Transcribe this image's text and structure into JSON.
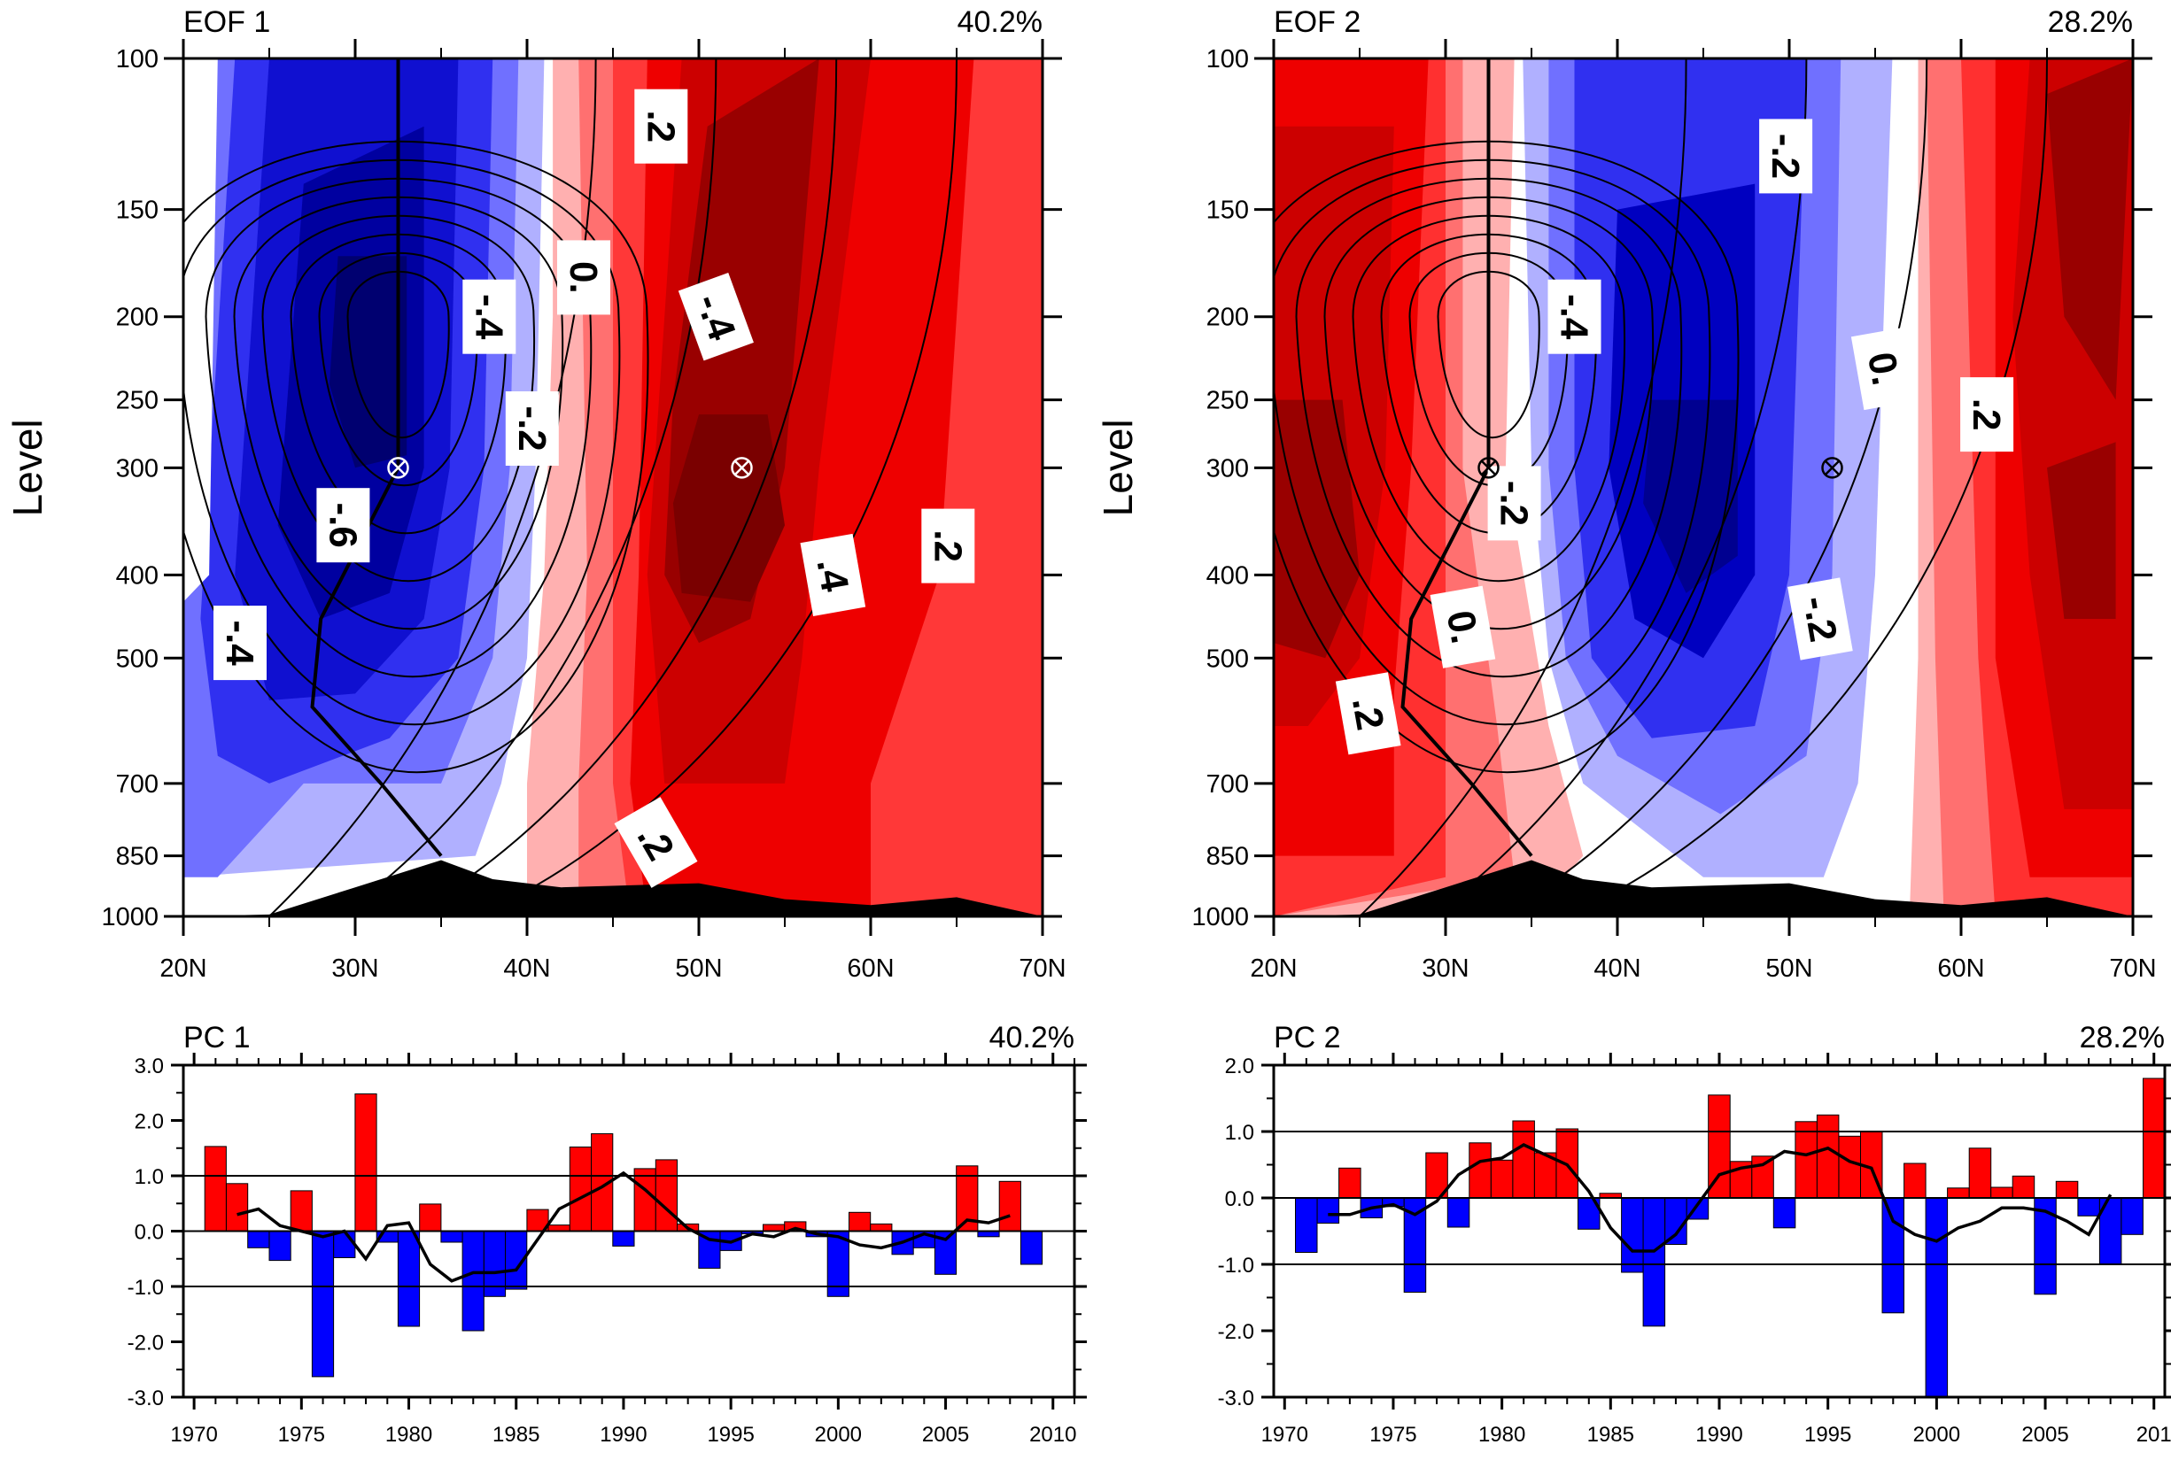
{
  "chart_data": [
    {
      "id": "eof1",
      "type": "contour",
      "title_left": "EOF 1",
      "title_right": "40.2%",
      "ylabel": "Level",
      "x_ticks": [
        "20N",
        "30N",
        "40N",
        "50N",
        "60N",
        "70N"
      ],
      "x_values": [
        20,
        30,
        40,
        50,
        60,
        70
      ],
      "y_ticks": [
        "100",
        "150",
        "200",
        "250",
        "300",
        "400",
        "500",
        "700",
        "850",
        "1000"
      ],
      "y_values": [
        100,
        150,
        200,
        250,
        300,
        400,
        500,
        700,
        850,
        1000
      ],
      "y_scale": "log",
      "markers": [
        {
          "lat": 32.5,
          "level": 300
        },
        {
          "lat": 52.5,
          "level": 300
        }
      ],
      "contour_labels": [
        {
          "text": ".2",
          "lat": 47.8,
          "level": 120,
          "angle": 90
        },
        {
          "text": "0.",
          "lat": 43.3,
          "level": 180,
          "angle": 90
        },
        {
          "text": "-.4",
          "lat": 37.8,
          "level": 200,
          "angle": 90
        },
        {
          "text": "-.4",
          "lat": 51.0,
          "level": 200,
          "angle": 70
        },
        {
          "text": "-.2",
          "lat": 40.3,
          "level": 270,
          "angle": 90
        },
        {
          "text": "-.6",
          "lat": 29.3,
          "level": 350,
          "angle": 90
        },
        {
          "text": ".4",
          "lat": 57.8,
          "level": 400,
          "angle": 80
        },
        {
          "text": ".2",
          "lat": 64.5,
          "level": 370,
          "angle": 90
        },
        {
          "text": "-.4",
          "lat": 23.3,
          "level": 480,
          "angle": 90
        },
        {
          "text": ".2",
          "lat": 47.5,
          "level": 820,
          "angle": 60
        }
      ]
    },
    {
      "id": "eof2",
      "type": "contour",
      "title_left": "EOF 2",
      "title_right": "28.2%",
      "ylabel": "Level",
      "x_ticks": [
        "20N",
        "30N",
        "40N",
        "50N",
        "60N",
        "70N"
      ],
      "x_values": [
        20,
        30,
        40,
        50,
        60,
        70
      ],
      "y_ticks": [
        "100",
        "150",
        "200",
        "250",
        "300",
        "400",
        "500",
        "700",
        "850",
        "1000"
      ],
      "y_values": [
        100,
        150,
        200,
        250,
        300,
        400,
        500,
        700,
        850,
        1000
      ],
      "y_scale": "log",
      "markers": [
        {
          "lat": 32.5,
          "level": 300
        },
        {
          "lat": 52.5,
          "level": 300
        }
      ],
      "contour_labels": [
        {
          "text": "-.2",
          "lat": 49.8,
          "level": 130,
          "angle": 90
        },
        {
          "text": "-.4",
          "lat": 37.5,
          "level": 200,
          "angle": 90
        },
        {
          "text": "0.",
          "lat": 55.5,
          "level": 230,
          "angle": 80
        },
        {
          "text": ".2",
          "lat": 61.5,
          "level": 260,
          "angle": 90
        },
        {
          "text": "-.2",
          "lat": 34.0,
          "level": 330,
          "angle": 90
        },
        {
          "text": "-.2",
          "lat": 51.8,
          "level": 450,
          "angle": 80
        },
        {
          "text": "0.",
          "lat": 31.0,
          "level": 460,
          "angle": 80
        },
        {
          "text": ".2",
          "lat": 25.5,
          "level": 580,
          "angle": 80
        }
      ]
    },
    {
      "id": "pc1",
      "type": "bar",
      "title_left": "PC 1",
      "title_right": "40.2%",
      "x_ticks": [
        "1970",
        "1975",
        "1980",
        "1985",
        "1990",
        "1995",
        "2000",
        "2005",
        "2010"
      ],
      "y_ticks": [
        "3.0",
        "2.0",
        "1.0",
        "0.0",
        "-1.0",
        "-2.0",
        "-3.0"
      ],
      "ylim": [
        -3,
        3
      ],
      "xlim": [
        1969.5,
        2011
      ],
      "reference_lines": [
        1.0,
        -1.0
      ],
      "years": [
        1971,
        1972,
        1973,
        1974,
        1975,
        1976,
        1977,
        1978,
        1979,
        1980,
        1981,
        1982,
        1983,
        1984,
        1985,
        1986,
        1987,
        1988,
        1989,
        1990,
        1991,
        1992,
        1993,
        1994,
        1995,
        1996,
        1997,
        1998,
        1999,
        2000,
        2001,
        2002,
        2003,
        2004,
        2005,
        2006,
        2007,
        2008,
        2009
      ],
      "values": [
        1.53,
        0.86,
        -0.3,
        -0.53,
        0.73,
        -2.63,
        -0.48,
        2.48,
        -0.2,
        -1.72,
        0.49,
        -0.2,
        -1.8,
        -1.18,
        -1.05,
        0.39,
        0.11,
        1.52,
        1.76,
        -0.27,
        1.13,
        1.29,
        0.13,
        -0.67,
        -0.35,
        -0.05,
        0.12,
        0.17,
        -0.1,
        -1.18,
        0.34,
        0.13,
        -0.42,
        -0.3,
        -0.78,
        1.18,
        -0.1,
        0.9,
        -0.6
      ],
      "smooth_years": [
        1972,
        1973,
        1974,
        1975,
        1976,
        1977,
        1978,
        1979,
        1980,
        1981,
        1982,
        1983,
        1984,
        1985,
        1986,
        1987,
        1988,
        1989,
        1990,
        1991,
        1992,
        1993,
        1994,
        1995,
        1996,
        1997,
        1998,
        1999,
        2000,
        2001,
        2002,
        2003,
        2004,
        2005,
        2006,
        2007,
        2008
      ],
      "smooth_values": [
        0.3,
        0.4,
        0.1,
        0.0,
        -0.1,
        0.0,
        -0.5,
        0.1,
        0.15,
        -0.6,
        -0.9,
        -0.75,
        -0.75,
        -0.7,
        -0.15,
        0.4,
        0.6,
        0.8,
        1.05,
        0.75,
        0.4,
        0.05,
        -0.15,
        -0.2,
        -0.05,
        -0.1,
        0.05,
        -0.05,
        -0.1,
        -0.25,
        -0.3,
        -0.2,
        -0.05,
        -0.15,
        0.2,
        0.15,
        0.28
      ],
      "colors": {
        "positive": "#ff0000",
        "negative": "#0000ff"
      }
    },
    {
      "id": "pc2",
      "type": "bar",
      "title_left": "PC 2",
      "title_right": "28.2%",
      "x_ticks": [
        "1970",
        "1975",
        "1980",
        "1985",
        "1990",
        "1995",
        "2000",
        "2005",
        "201"
      ],
      "y_ticks": [
        "2.0",
        "1.0",
        "0.0",
        "-1.0",
        "-2.0",
        "-3.0"
      ],
      "ylim": [
        -3,
        2
      ],
      "xlim": [
        1969.5,
        2010.5
      ],
      "reference_lines": [
        1.0,
        -1.0
      ],
      "years": [
        1971,
        1972,
        1973,
        1974,
        1975,
        1976,
        1977,
        1978,
        1979,
        1980,
        1981,
        1982,
        1983,
        1984,
        1985,
        1986,
        1987,
        1988,
        1989,
        1990,
        1991,
        1992,
        1993,
        1994,
        1995,
        1996,
        1997,
        1998,
        1999,
        2000,
        2001,
        2002,
        2003,
        2004,
        2005,
        2006,
        2007,
        2008,
        2009,
        2010
      ],
      "values": [
        -0.82,
        -0.38,
        0.45,
        -0.3,
        -0.13,
        -1.42,
        0.68,
        -0.44,
        0.83,
        0.57,
        1.16,
        0.68,
        1.04,
        -0.47,
        0.07,
        -1.12,
        -1.93,
        -0.7,
        -0.32,
        1.55,
        0.55,
        0.63,
        -0.45,
        1.15,
        1.25,
        0.93,
        1.0,
        -1.73,
        0.52,
        -3.0,
        0.15,
        0.75,
        0.16,
        0.33,
        -1.45,
        0.25,
        -0.27,
        -1.0,
        -0.55,
        1.8
      ],
      "smooth_years": [
        1972,
        1973,
        1974,
        1975,
        1976,
        1977,
        1978,
        1979,
        1980,
        1981,
        1982,
        1983,
        1984,
        1985,
        1986,
        1987,
        1988,
        1989,
        1990,
        1991,
        1992,
        1993,
        1994,
        1995,
        1996,
        1997,
        1998,
        1999,
        2000,
        2001,
        2002,
        2003,
        2004,
        2005,
        2006,
        2007,
        2008
      ],
      "smooth_values": [
        -0.25,
        -0.25,
        -0.15,
        -0.1,
        -0.25,
        -0.05,
        0.35,
        0.55,
        0.6,
        0.8,
        0.65,
        0.5,
        0.1,
        -0.45,
        -0.8,
        -0.8,
        -0.55,
        -0.1,
        0.35,
        0.45,
        0.5,
        0.7,
        0.65,
        0.75,
        0.55,
        0.45,
        -0.35,
        -0.55,
        -0.65,
        -0.45,
        -0.35,
        -0.15,
        -0.15,
        -0.2,
        -0.35,
        -0.55,
        0.05
      ],
      "colors": {
        "positive": "#ff0000",
        "negative": "#0000ff"
      }
    }
  ]
}
